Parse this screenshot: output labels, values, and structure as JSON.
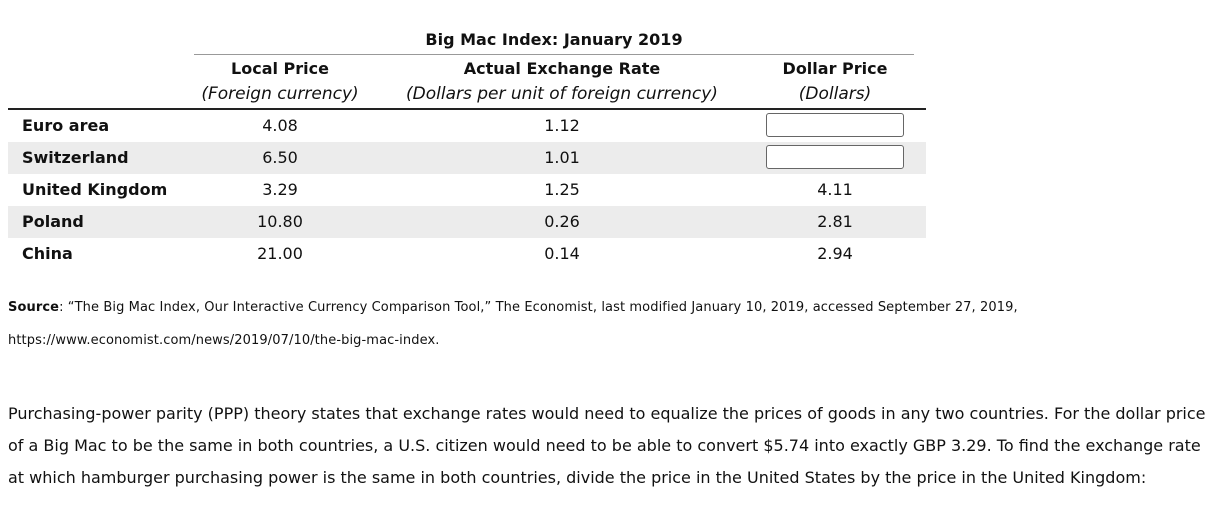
{
  "table": {
    "caption": "Big Mac Index: January 2019",
    "headers": {
      "local_title": "Local Price",
      "local_sub": "(Foreign currency)",
      "rate_title": "Actual Exchange Rate",
      "rate_sub": "(Dollars per unit of foreign currency)",
      "dollar_title": "Dollar Price",
      "dollar_sub": "(Dollars)"
    },
    "rows": [
      {
        "country": "Euro area",
        "local": "4.08",
        "rate": "1.12",
        "dollar": ""
      },
      {
        "country": "Switzerland",
        "local": "6.50",
        "rate": "1.01",
        "dollar": ""
      },
      {
        "country": "United Kingdom",
        "local": "3.29",
        "rate": "1.25",
        "dollar": "4.11"
      },
      {
        "country": "Poland",
        "local": "10.80",
        "rate": "0.26",
        "dollar": "2.81"
      },
      {
        "country": "China",
        "local": "21.00",
        "rate": "0.14",
        "dollar": "2.94"
      }
    ]
  },
  "source": {
    "label": "Source",
    "text": ": “The Big Mac Index, Our Interactive Currency Comparison Tool,” The Economist, last modified January 10, 2019, accessed September 27, 2019,",
    "url": "https://www.economist.com/news/2019/07/10/the-big-mac-index."
  },
  "paragraph": "Purchasing-power parity (PPP) theory states that exchange rates would need to equalize the prices of goods in any two countries. For the dollar price of a Big Mac to be the same in both countries, a U.S. citizen would need to be able to convert $5.74 into exactly GBP 3.29. To find the exchange rate at which hamburger purchasing power is the same in both countries, divide the price in the United States by the price in the United Kingdom:"
}
